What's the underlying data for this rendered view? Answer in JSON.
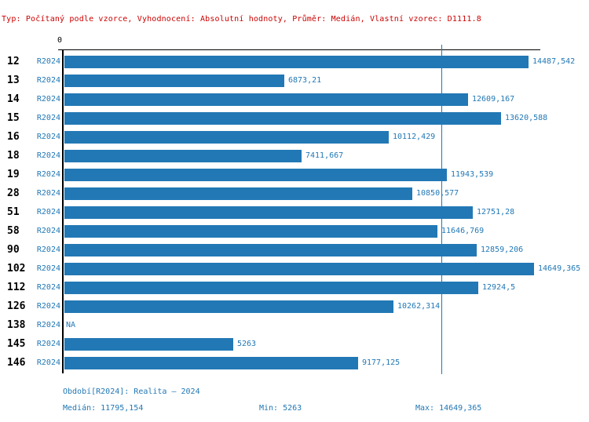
{
  "header": {
    "info_line": "Typ: Počítaný podle vzorce, Vyhodnocení: Absolutní hodnoty, Průměr: Medián, Vlastní vzorec: D1111.8"
  },
  "chart_data": {
    "type": "bar",
    "orientation": "horizontal",
    "axis_zero_label": "0",
    "xlim": [
      0,
      14649.365
    ],
    "series_name": "R2024",
    "categories": [
      "12",
      "13",
      "14",
      "15",
      "16",
      "18",
      "19",
      "28",
      "51",
      "58",
      "90",
      "102",
      "112",
      "126",
      "138",
      "145",
      "146"
    ],
    "rows": [
      {
        "category": "12",
        "series": "R2024",
        "value": 14487.542,
        "value_label": "14487,542"
      },
      {
        "category": "13",
        "series": "R2024",
        "value": 6873.21,
        "value_label": "6873,21"
      },
      {
        "category": "14",
        "series": "R2024",
        "value": 12609.167,
        "value_label": "12609,167"
      },
      {
        "category": "15",
        "series": "R2024",
        "value": 13620.588,
        "value_label": "13620,588"
      },
      {
        "category": "16",
        "series": "R2024",
        "value": 10112.429,
        "value_label": "10112,429"
      },
      {
        "category": "18",
        "series": "R2024",
        "value": 7411.667,
        "value_label": "7411,667"
      },
      {
        "category": "19",
        "series": "R2024",
        "value": 11943.539,
        "value_label": "11943,539"
      },
      {
        "category": "28",
        "series": "R2024",
        "value": 10850.577,
        "value_label": "10850,577"
      },
      {
        "category": "51",
        "series": "R2024",
        "value": 12751.28,
        "value_label": "12751,28"
      },
      {
        "category": "58",
        "series": "R2024",
        "value": 11646.769,
        "value_label": "11646,769"
      },
      {
        "category": "90",
        "series": "R2024",
        "value": 12859.206,
        "value_label": "12859,206"
      },
      {
        "category": "102",
        "series": "R2024",
        "value": 14649.365,
        "value_label": "14649,365"
      },
      {
        "category": "112",
        "series": "R2024",
        "value": 12924.5,
        "value_label": "12924,5"
      },
      {
        "category": "126",
        "series": "R2024",
        "value": 10262.314,
        "value_label": "10262,314"
      },
      {
        "category": "138",
        "series": "R2024",
        "value": null,
        "value_label": "NA"
      },
      {
        "category": "145",
        "series": "R2024",
        "value": 5263,
        "value_label": "5263"
      },
      {
        "category": "146",
        "series": "R2024",
        "value": 9177.125,
        "value_label": "9177,125"
      }
    ],
    "median_line_value": 11795.154,
    "grid": false,
    "legend": false,
    "colors": {
      "bar": "#2278b5",
      "value_text": "#2278b5",
      "median_line": "#2278b5",
      "axis": "#000000",
      "info_text": "#cc0000",
      "background": "#ffffff"
    }
  },
  "footer": {
    "period_label": "Období[R2024]: Realita – 2024",
    "median_label": "Medián: 11795,154",
    "min_label": "Min: 5263",
    "max_label": "Max: 14649,365"
  }
}
